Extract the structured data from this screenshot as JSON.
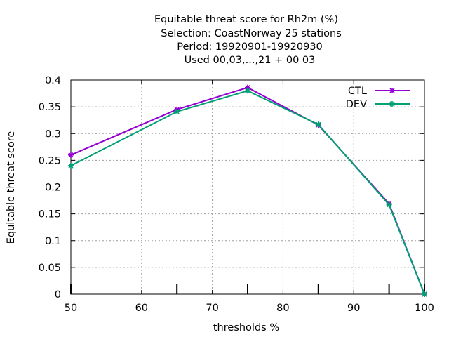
{
  "chart_data": {
    "type": "line",
    "title_lines": [
      "Equitable threat score  for Rh2m (%)",
      "Selection: CoastNorway     25 stations",
      "Period: 19920901-19920930",
      "Used  00,03,...,21  + 00 03"
    ],
    "xlabel": "thresholds %",
    "ylabel": "Equitable threat score",
    "xlim": [
      50,
      100
    ],
    "ylim": [
      0,
      0.4
    ],
    "xticks": [
      50,
      60,
      70,
      80,
      90,
      100
    ],
    "xtick_labels": [
      "50",
      "60",
      "70",
      "80",
      "90",
      "100"
    ],
    "yticks": [
      0,
      0.05,
      0.1,
      0.15,
      0.2,
      0.25,
      0.3,
      0.35,
      0.4
    ],
    "ytick_labels": [
      "0",
      "0.05",
      "0.1",
      "0.15",
      "0.2",
      "0.25",
      "0.3",
      "0.35",
      "0.4"
    ],
    "grid": true,
    "legend_position": "top-right",
    "threshold_marks_x": [
      50,
      65,
      75,
      85,
      95,
      100
    ],
    "series": [
      {
        "name": "CTL",
        "color": "#9400d3",
        "marker": "star",
        "x": [
          50,
          65,
          75,
          85,
          95,
          100
        ],
        "y": [
          0.26,
          0.345,
          0.386,
          0.316,
          0.169,
          0.0
        ]
      },
      {
        "name": "DEV",
        "color": "#009e73",
        "marker": "star",
        "x": [
          50,
          65,
          75,
          85,
          95,
          100
        ],
        "y": [
          0.24,
          0.341,
          0.38,
          0.317,
          0.167,
          0.0
        ]
      }
    ]
  }
}
